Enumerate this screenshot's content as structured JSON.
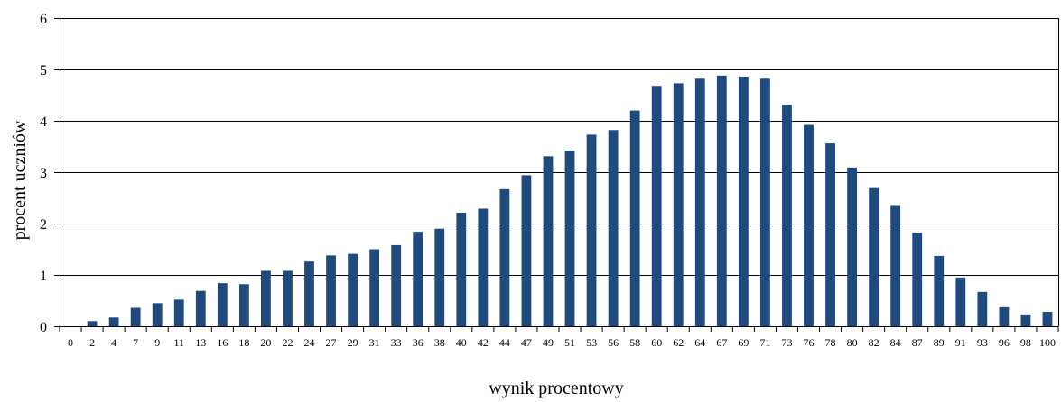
{
  "chart_data": {
    "type": "bar",
    "title": "",
    "xlabel": "wynik procentowy",
    "ylabel": "procent uczniów",
    "ylim": [
      0,
      6
    ],
    "yticks": [
      0,
      1,
      2,
      3,
      4,
      5,
      6
    ],
    "grid": true,
    "categories": [
      "0",
      "2",
      "4",
      "7",
      "9",
      "11",
      "13",
      "16",
      "18",
      "20",
      "22",
      "24",
      "27",
      "29",
      "31",
      "33",
      "36",
      "38",
      "40",
      "42",
      "44",
      "47",
      "49",
      "51",
      "53",
      "56",
      "58",
      "60",
      "62",
      "64",
      "67",
      "69",
      "71",
      "73",
      "76",
      "78",
      "80",
      "82",
      "84",
      "87",
      "89",
      "91",
      "93",
      "96",
      "98",
      "100"
    ],
    "values": [
      0,
      0.1,
      0.17,
      0.36,
      0.45,
      0.52,
      0.69,
      0.84,
      0.82,
      1.08,
      1.08,
      1.26,
      1.38,
      1.41,
      1.5,
      1.58,
      1.84,
      1.9,
      2.21,
      2.29,
      2.67,
      2.94,
      3.31,
      3.42,
      3.73,
      3.82,
      4.2,
      4.68,
      4.73,
      4.82,
      4.88,
      4.86,
      4.82,
      4.31,
      3.92,
      3.56,
      3.09,
      2.69,
      2.36,
      1.82,
      1.37,
      0.95,
      0.67,
      0.37,
      0.23,
      0.28
    ],
    "bar_color": "#1f4a7e"
  }
}
